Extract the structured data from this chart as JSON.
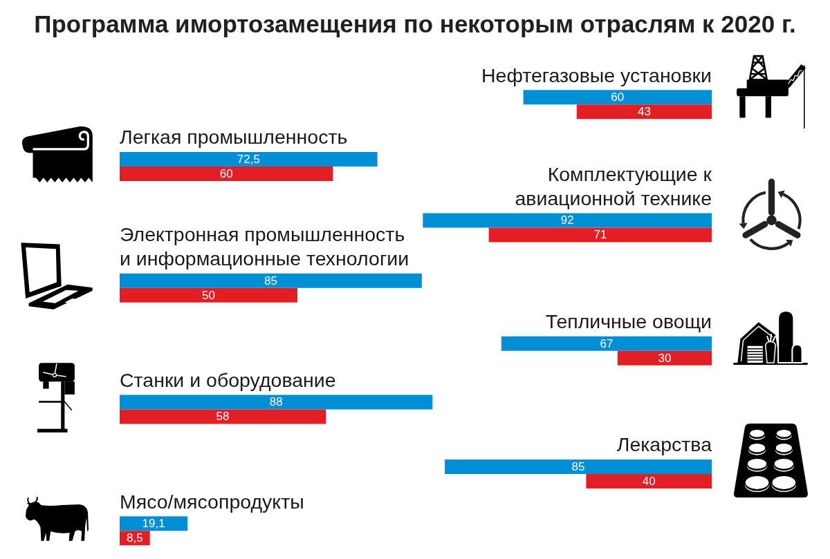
{
  "chart_data": [
    {
      "type": "bar",
      "title": "Программа имортозамещения по некоторым отраслям к 2020 г.",
      "orientation": "horizontal",
      "categories": [
        "Легкая промышленность",
        "Электронная промышленность\nи информационные технологии",
        "Станки и оборудование",
        "Мясо/мясопродукты"
      ],
      "series": [
        {
          "color": "#008fd5",
          "values": [
            72.5,
            85,
            88,
            19.1
          ],
          "value_labels": [
            "72,5",
            "85",
            "88",
            "19,1"
          ]
        },
        {
          "color": "#e31e24",
          "values": [
            60,
            50,
            58,
            8.5
          ],
          "value_labels": [
            "60",
            "50",
            "58",
            "8,5"
          ]
        }
      ]
    },
    {
      "type": "bar",
      "orientation": "horizontal",
      "data_labels": true,
      "categories": [
        "Нефтегазовые установки",
        "Комплектующие к\nавиационной технике",
        "Тепличные овощи",
        "Лекарства"
      ],
      "series": [
        {
          "color": "#008fd5",
          "values": [
            60,
            92,
            67,
            85
          ]
        },
        {
          "color": "#e31e24",
          "values": [
            43,
            71,
            30,
            40
          ]
        }
      ]
    }
  ]
}
